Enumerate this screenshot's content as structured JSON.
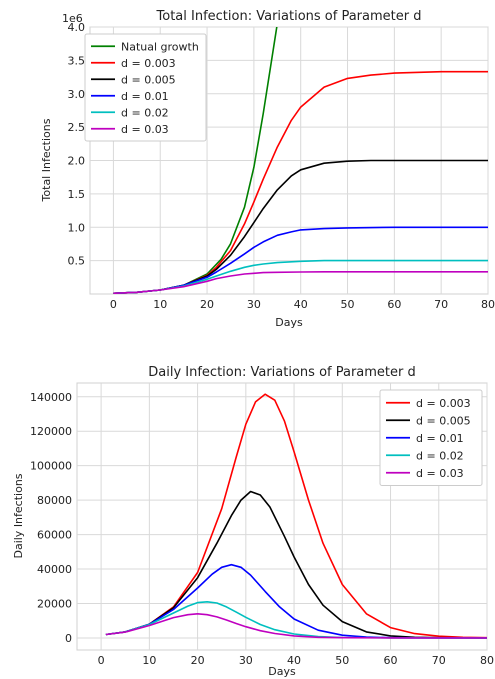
{
  "chart_data": [
    {
      "type": "line",
      "title": "Total Infection: Variations of Parameter d",
      "xlabel": "Days",
      "ylabel": "Total  Infections",
      "y_offset_label": "1e6",
      "xlim": [
        -5,
        80
      ],
      "ylim": [
        0,
        4.0
      ],
      "xticks": [
        0,
        10,
        20,
        30,
        40,
        50,
        60,
        70,
        80
      ],
      "yticks": [
        0.5,
        1.0,
        1.5,
        2.0,
        2.5,
        3.0,
        3.5,
        4.0
      ],
      "ytick_labels": [
        "0.5",
        "1.0",
        "1.5",
        "2.0",
        "2.5",
        "3.0",
        "3.5",
        "4.0"
      ],
      "grid": true,
      "legend": "top-left",
      "series": [
        {
          "name": "Natual growth",
          "color": "#008000",
          "x": [
            0,
            5,
            10,
            15,
            20,
            23,
            25,
            28,
            30,
            32,
            34,
            35
          ],
          "y": [
            0.01,
            0.025,
            0.06,
            0.13,
            0.3,
            0.52,
            0.75,
            1.3,
            1.9,
            2.7,
            3.6,
            4.05
          ]
        },
        {
          "name": "d = 0.003",
          "color": "#ff0000",
          "x": [
            0,
            5,
            10,
            15,
            20,
            22,
            25,
            28,
            30,
            32,
            35,
            38,
            40,
            45,
            50,
            55,
            60,
            70,
            80
          ],
          "y": [
            0.01,
            0.025,
            0.06,
            0.13,
            0.28,
            0.4,
            0.65,
            1.05,
            1.38,
            1.72,
            2.2,
            2.6,
            2.8,
            3.1,
            3.23,
            3.28,
            3.31,
            3.33,
            3.33
          ]
        },
        {
          "name": "d = 0.005",
          "color": "#000000",
          "x": [
            0,
            5,
            10,
            15,
            20,
            22,
            25,
            28,
            30,
            32,
            35,
            38,
            40,
            45,
            50,
            55,
            60,
            70,
            80
          ],
          "y": [
            0.01,
            0.025,
            0.06,
            0.13,
            0.27,
            0.37,
            0.58,
            0.86,
            1.07,
            1.28,
            1.56,
            1.77,
            1.86,
            1.96,
            1.99,
            2.0,
            2.0,
            2.0,
            2.0
          ]
        },
        {
          "name": "d = 0.01",
          "color": "#0000ff",
          "x": [
            0,
            5,
            10,
            15,
            20,
            22,
            25,
            28,
            30,
            32,
            35,
            38,
            40,
            45,
            50,
            60,
            70,
            80
          ],
          "y": [
            0.01,
            0.025,
            0.06,
            0.13,
            0.25,
            0.33,
            0.46,
            0.6,
            0.7,
            0.78,
            0.88,
            0.93,
            0.96,
            0.98,
            0.99,
            1.0,
            1.0,
            1.0
          ]
        },
        {
          "name": "d = 0.02",
          "color": "#00bfbf",
          "x": [
            0,
            5,
            10,
            15,
            20,
            22,
            25,
            28,
            30,
            32,
            35,
            40,
            45,
            50,
            60,
            70,
            80
          ],
          "y": [
            0.01,
            0.025,
            0.06,
            0.12,
            0.22,
            0.27,
            0.34,
            0.4,
            0.43,
            0.45,
            0.47,
            0.49,
            0.5,
            0.5,
            0.5,
            0.5,
            0.5
          ]
        },
        {
          "name": "d = 0.03",
          "color": "#bf00bf",
          "x": [
            0,
            5,
            10,
            15,
            20,
            22,
            25,
            28,
            30,
            32,
            35,
            40,
            45,
            50,
            60,
            70,
            80
          ],
          "y": [
            0.01,
            0.025,
            0.06,
            0.11,
            0.19,
            0.23,
            0.27,
            0.3,
            0.31,
            0.32,
            0.325,
            0.33,
            0.333,
            0.333,
            0.333,
            0.333,
            0.333
          ]
        }
      ]
    },
    {
      "type": "line",
      "title": "Daily Infection: Variations of Parameter d",
      "xlabel": "Days",
      "ylabel": "Daily Infections",
      "xlim": [
        -5,
        80
      ],
      "ylim": [
        -7000,
        148000
      ],
      "xticks": [
        0,
        10,
        20,
        30,
        40,
        50,
        60,
        70,
        80
      ],
      "yticks": [
        0,
        20000,
        40000,
        60000,
        80000,
        100000,
        120000,
        140000
      ],
      "ytick_labels": [
        "0",
        "20000",
        "40000",
        "60000",
        "80000",
        "100000",
        "120000",
        "140000"
      ],
      "grid": true,
      "legend": "top-right",
      "series": [
        {
          "name": "d = 0.003",
          "color": "#ff0000",
          "x": [
            1,
            5,
            10,
            15,
            20,
            25,
            28,
            30,
            32,
            34,
            36,
            38,
            40,
            43,
            46,
            50,
            55,
            60,
            65,
            70,
            75,
            80
          ],
          "y": [
            2000,
            3500,
            8000,
            18000,
            38000,
            75000,
            105000,
            124000,
            137000,
            141500,
            138000,
            126000,
            108000,
            80000,
            55000,
            31000,
            14000,
            6000,
            2500,
            1000,
            400,
            150
          ]
        },
        {
          "name": "d = 0.005",
          "color": "#000000",
          "x": [
            1,
            5,
            10,
            15,
            20,
            24,
            27,
            29,
            31,
            33,
            35,
            38,
            40,
            43,
            46,
            50,
            55,
            60,
            65,
            70,
            80
          ],
          "y": [
            2000,
            3500,
            8000,
            17500,
            35000,
            55000,
            71000,
            80000,
            85000,
            83000,
            76000,
            59000,
            47000,
            31000,
            19000,
            9500,
            3500,
            1200,
            400,
            150,
            20
          ]
        },
        {
          "name": "d = 0.01",
          "color": "#0000ff",
          "x": [
            1,
            5,
            10,
            15,
            20,
            23,
            25,
            27,
            29,
            31,
            34,
            37,
            40,
            45,
            50,
            55,
            60,
            70,
            80
          ],
          "y": [
            2000,
            3500,
            8000,
            16500,
            29000,
            37000,
            41000,
            42500,
            41000,
            36500,
            27000,
            18000,
            11000,
            4500,
            1600,
            500,
            150,
            20,
            0
          ]
        },
        {
          "name": "d = 0.02",
          "color": "#00bfbf",
          "x": [
            1,
            5,
            10,
            15,
            18,
            20,
            22,
            24,
            26,
            28,
            30,
            33,
            36,
            40,
            45,
            50,
            60,
            70,
            80
          ],
          "y": [
            2000,
            3500,
            7800,
            14500,
            18500,
            20500,
            21000,
            20300,
            18000,
            15000,
            12000,
            7800,
            4800,
            2300,
            800,
            250,
            30,
            0,
            0
          ]
        },
        {
          "name": "d = 0.03",
          "color": "#bf00bf",
          "x": [
            1,
            5,
            10,
            15,
            18,
            20,
            22,
            24,
            26,
            28,
            30,
            33,
            36,
            40,
            45,
            50,
            60,
            70,
            80
          ],
          "y": [
            2000,
            3400,
            7200,
            11800,
            13500,
            14000,
            13500,
            12200,
            10400,
            8400,
            6500,
            4200,
            2600,
            1200,
            400,
            120,
            10,
            0,
            0
          ]
        }
      ]
    }
  ]
}
